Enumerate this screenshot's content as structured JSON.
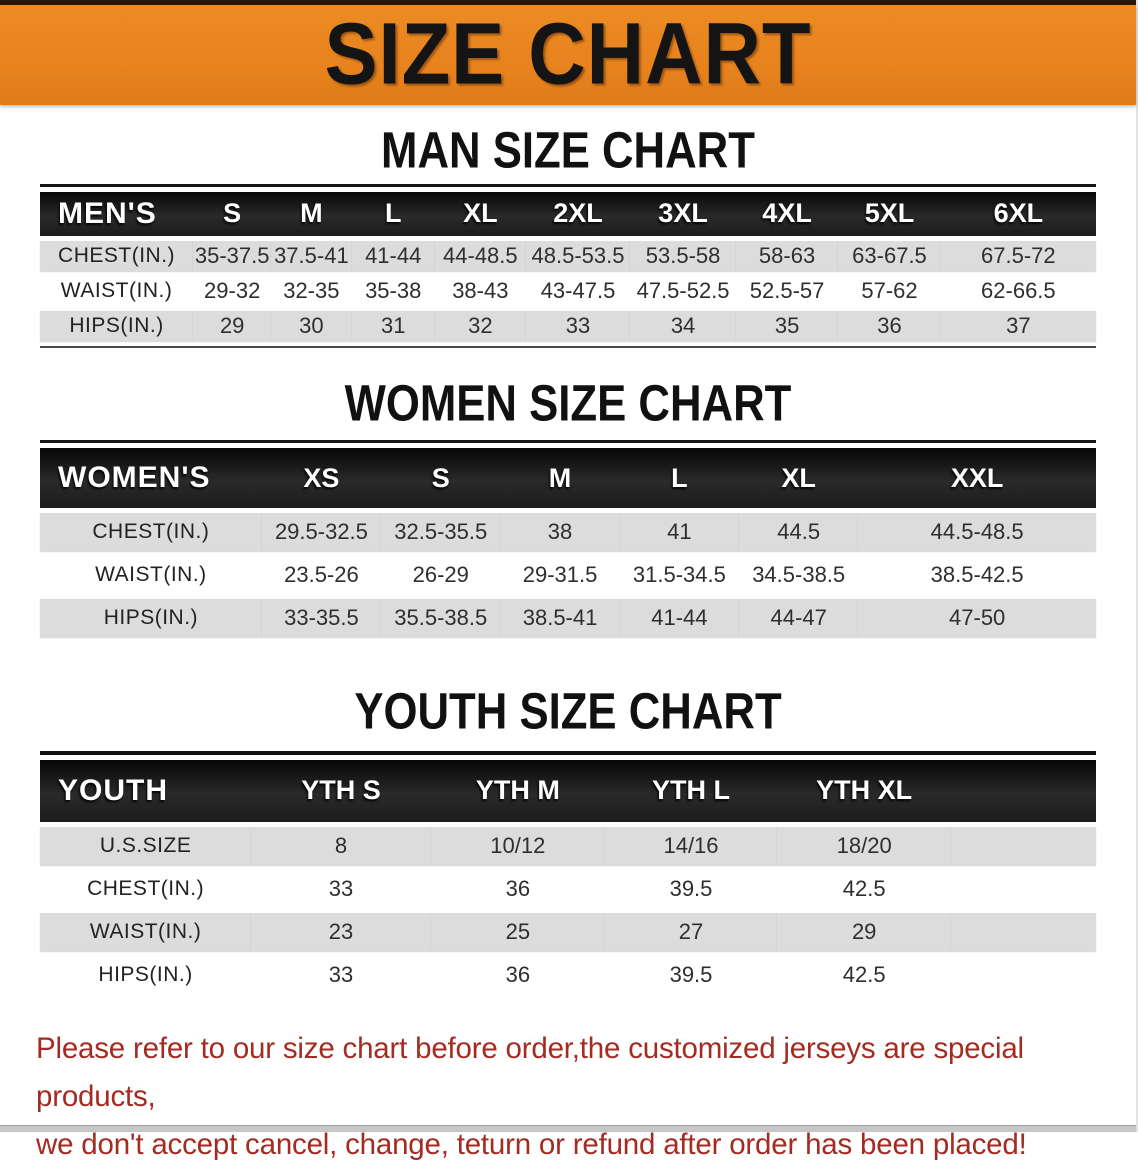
{
  "banner": {
    "title": "SIZE CHART"
  },
  "men": {
    "heading": "MAN SIZE CHART",
    "header": {
      "corner": "MEN'S",
      "cols": [
        "S",
        "M",
        "L",
        "XL",
        "2XL",
        "3XL",
        "4XL",
        "5XL",
        "6XL"
      ]
    },
    "rows": [
      {
        "label": "CHEST(IN.)",
        "cells": [
          "35-37.5",
          "37.5-41",
          "41-44",
          "44-48.5",
          "48.5-53.5",
          "53.5-58",
          "58-63",
          "63-67.5",
          "67.5-72"
        ]
      },
      {
        "label": "WAIST(IN.)",
        "cells": [
          "29-32",
          "32-35",
          "35-38",
          "38-43",
          "43-47.5",
          "47.5-52.5",
          "52.5-57",
          "57-62",
          "62-66.5"
        ]
      },
      {
        "label": "HIPS(IN.)",
        "cells": [
          "29",
          "30",
          "31",
          "32",
          "33",
          "34",
          "35",
          "36",
          "37"
        ]
      }
    ]
  },
  "women": {
    "heading": "WOMEN SIZE CHART",
    "header": {
      "corner": "WOMEN'S",
      "cols": [
        "XS",
        "S",
        "M",
        "L",
        "XL",
        "XXL"
      ]
    },
    "rows": [
      {
        "label": "CHEST(IN.)",
        "cells": [
          "29.5-32.5",
          "32.5-35.5",
          "38",
          "41",
          "44.5",
          "44.5-48.5"
        ]
      },
      {
        "label": "WAIST(IN.)",
        "cells": [
          "23.5-26",
          "26-29",
          "29-31.5",
          "31.5-34.5",
          "34.5-38.5",
          "38.5-42.5"
        ]
      },
      {
        "label": "HIPS(IN.)",
        "cells": [
          "33-35.5",
          "35.5-38.5",
          "38.5-41",
          "41-44",
          "44-47",
          "47-50"
        ]
      }
    ]
  },
  "youth": {
    "heading": "YOUTH SIZE CHART",
    "header": {
      "corner": "YOUTH",
      "cols": [
        "YTH S",
        "YTH M",
        "YTH L",
        "YTH XL"
      ]
    },
    "rows": [
      {
        "label": "U.S.SIZE",
        "cells": [
          "8",
          "10/12",
          "14/16",
          "18/20"
        ]
      },
      {
        "label": "CHEST(IN.)",
        "cells": [
          "33",
          "36",
          "39.5",
          "42.5"
        ]
      },
      {
        "label": "WAIST(IN.)",
        "cells": [
          "23",
          "25",
          "27",
          "29"
        ]
      },
      {
        "label": "HIPS(IN.)",
        "cells": [
          "33",
          "36",
          "39.5",
          "42.5"
        ]
      }
    ]
  },
  "footer": {
    "line1": "Please refer to our size chart before order,the customized jerseys are special products,",
    "line2": "we don't accept cancel, change, teturn or refund after order has been placed!"
  },
  "colors": {
    "banner_orange": "#e8831e",
    "header_bar_black": "#1a1a1a",
    "row_gray": "#dcdcdc",
    "footer_red": "#a32b22"
  }
}
